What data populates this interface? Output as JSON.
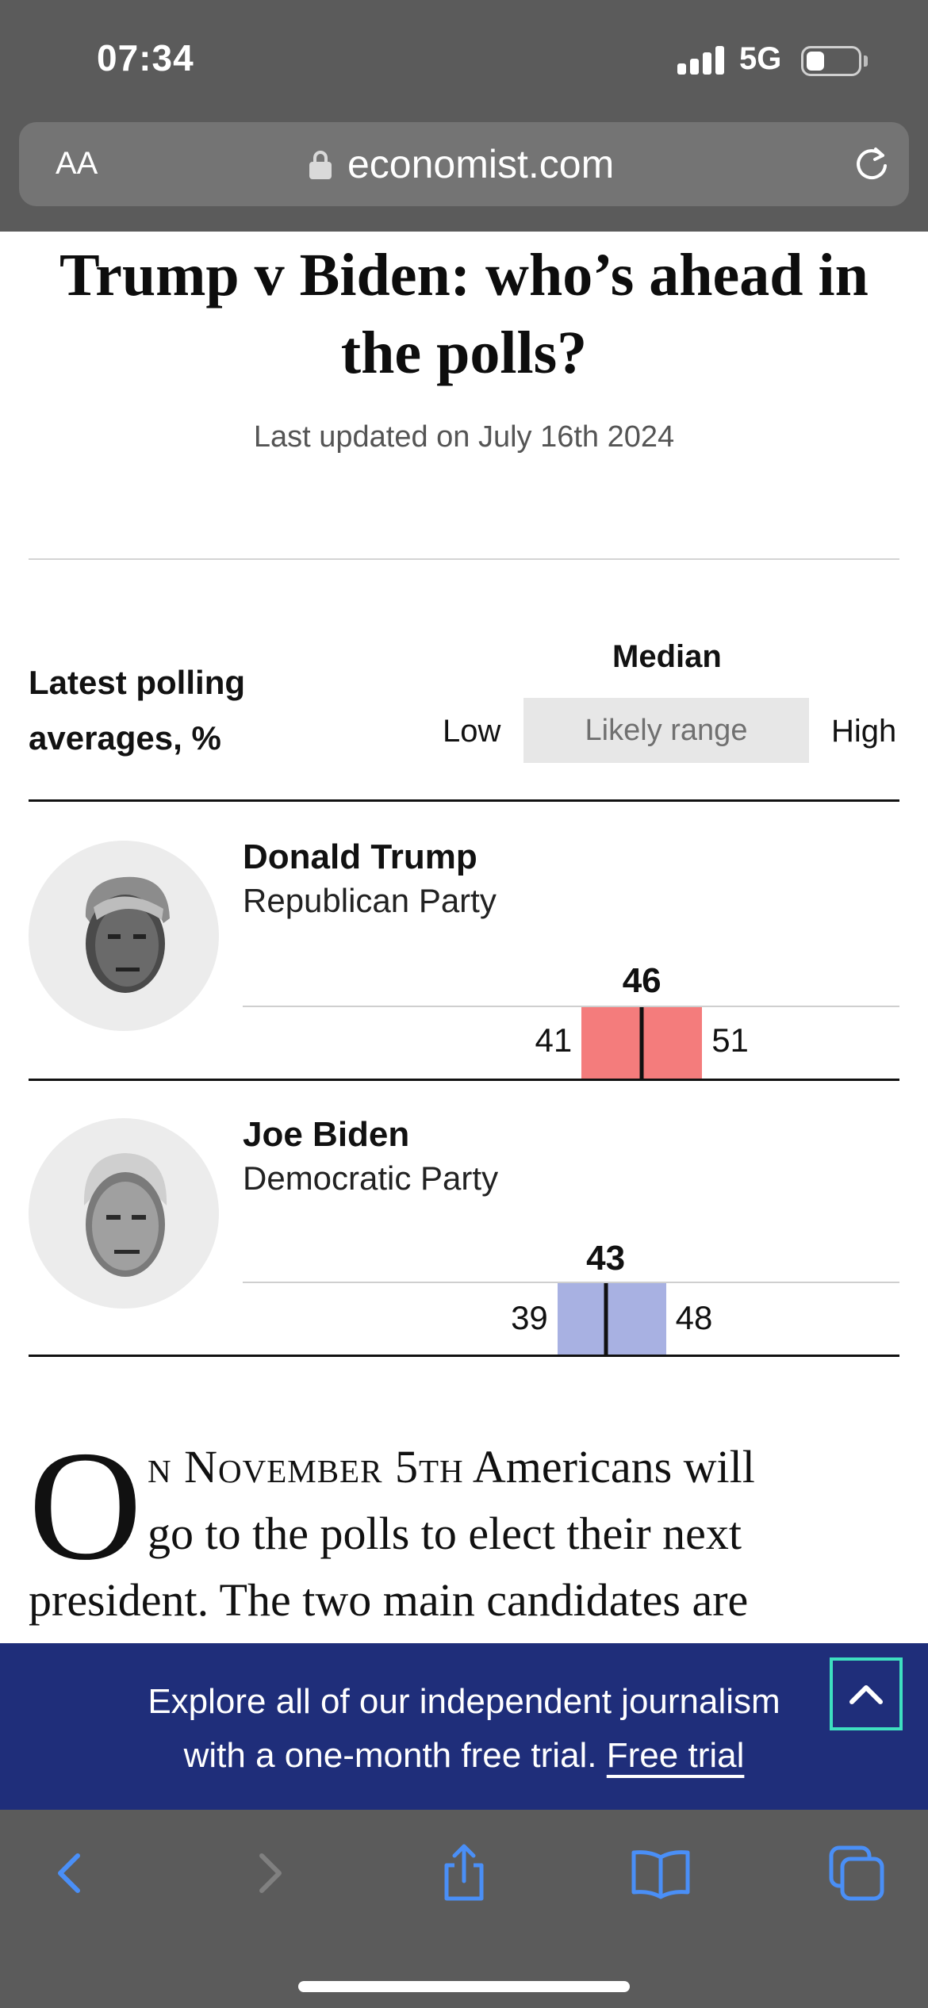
{
  "status_bar": {
    "time": "07:34",
    "network": "5G",
    "battery_level": 0.35
  },
  "browser": {
    "text_size_button": "AA",
    "url": "economist.com"
  },
  "article": {
    "headline": "Trump v Biden: who’s ahead in the polls?",
    "updated": "Last updated on July 16th 2024",
    "dropcap": "O",
    "body_lines": {
      "line1_smallcaps": "n November 5th",
      "line1_rest": " Americans will",
      "line2": "go to the polls to elect their next",
      "line3": "president. The two main candidates are"
    }
  },
  "legend": {
    "title_line1": "Latest polling",
    "title_line2": "averages, %",
    "median": "Median",
    "low": "Low",
    "range": "Likely range",
    "high": "High"
  },
  "chart_data": {
    "type": "range",
    "title": "Latest polling averages, %",
    "series": [
      {
        "name": "Donald Trump",
        "party": "Republican Party",
        "low": 41,
        "median": 46,
        "high": 51,
        "color": "#f47c7c"
      },
      {
        "name": "Joe Biden",
        "party": "Democratic Party",
        "low": 39,
        "median": 43,
        "high": 48,
        "color": "#a8b1e2"
      }
    ]
  },
  "candidates": [
    {
      "name": "Donald Trump",
      "party": "Republican Party",
      "low": "41",
      "median": "46",
      "high": "51"
    },
    {
      "name": "Joe Biden",
      "party": "Democratic Party",
      "low": "39",
      "median": "43",
      "high": "48"
    }
  ],
  "promo": {
    "line1": "Explore all of our independent journalism",
    "line2": "with a one-month free trial.",
    "link": "Free trial"
  },
  "toolbar": {
    "icons": [
      "back-icon",
      "forward-icon",
      "share-icon",
      "bookmarks-icon",
      "tabs-icon"
    ],
    "accent": "#4a8ff7"
  }
}
